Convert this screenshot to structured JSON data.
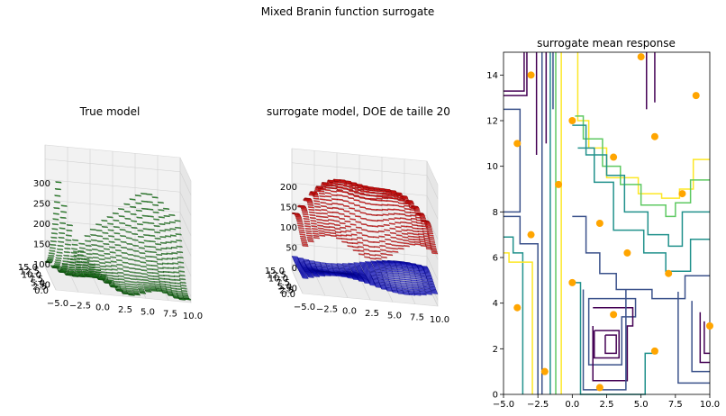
{
  "suptitle": "Mixed Branin function surrogate",
  "chart_data": [
    {
      "type": "surface3d",
      "title": "True model",
      "x_ticks": [
        "−5.0",
        "−2.5",
        "0.0",
        "2.5",
        "5.0",
        "7.5",
        "10.0"
      ],
      "y_ticks": [
        "0.0",
        "2.5",
        "5.0",
        "7.5",
        "10.0",
        "12.5",
        "15.0"
      ],
      "z_ticks": [
        "50",
        "100",
        "150",
        "200",
        "250",
        "300"
      ],
      "xlim": [
        -5,
        10
      ],
      "ylim": [
        0,
        15
      ],
      "zlim": [
        20,
        300
      ],
      "surface_color": "#1f9d1f",
      "edge_color": "#0b3d0b"
    },
    {
      "type": "surface3d",
      "title": "surrogate model, DOE de taille 20",
      "x_ticks": [
        "−5.0",
        "−2.5",
        "0.0",
        "2.5",
        "5.0",
        "7.5",
        "10.0"
      ],
      "y_ticks": [
        "0.0",
        "2.5",
        "5.0",
        "7.5",
        "10.0",
        "12.5",
        "15.0"
      ],
      "z_ticks": [
        "−50",
        "0",
        "50",
        "100",
        "150",
        "200"
      ],
      "xlim": [
        -5,
        10
      ],
      "ylim": [
        0,
        15
      ],
      "zlim": [
        -80,
        220
      ],
      "surfaces": [
        {
          "color": "#ff1a1a",
          "edge": "#7a0000"
        },
        {
          "color": "#1a1aff",
          "edge": "#00007a"
        }
      ]
    },
    {
      "type": "contour",
      "title": "surrogate mean response",
      "x_ticks": [
        "−5.0",
        "−2.5",
        "0.0",
        "2.5",
        "5.0",
        "7.5",
        "10.0"
      ],
      "y_ticks": [
        "0",
        "2",
        "4",
        "6",
        "8",
        "10",
        "12",
        "14"
      ],
      "xlim": [
        -5,
        10
      ],
      "ylim": [
        0,
        15
      ],
      "level_colors": [
        "#440154",
        "#3b528b",
        "#21918c",
        "#5ec962",
        "#fde725"
      ],
      "points": [
        {
          "x": 5.0,
          "y": 14.8
        },
        {
          "x": -3.0,
          "y": 14.0
        },
        {
          "x": 9.0,
          "y": 13.1
        },
        {
          "x": 0.0,
          "y": 12.0
        },
        {
          "x": 6.0,
          "y": 11.3
        },
        {
          "x": -4.0,
          "y": 11.0
        },
        {
          "x": 3.0,
          "y": 10.4
        },
        {
          "x": -1.0,
          "y": 9.2
        },
        {
          "x": 8.0,
          "y": 8.8
        },
        {
          "x": 2.0,
          "y": 7.5
        },
        {
          "x": -3.0,
          "y": 7.0
        },
        {
          "x": 4.0,
          "y": 6.2
        },
        {
          "x": 7.0,
          "y": 5.3
        },
        {
          "x": 0.0,
          "y": 4.9
        },
        {
          "x": -4.0,
          "y": 3.8
        },
        {
          "x": 3.0,
          "y": 3.5
        },
        {
          "x": 10.0,
          "y": 3.0
        },
        {
          "x": 6.0,
          "y": 1.9
        },
        {
          "x": -2.0,
          "y": 1.0
        },
        {
          "x": 2.0,
          "y": 0.3
        }
      ],
      "point_color": "#ffa500"
    }
  ]
}
